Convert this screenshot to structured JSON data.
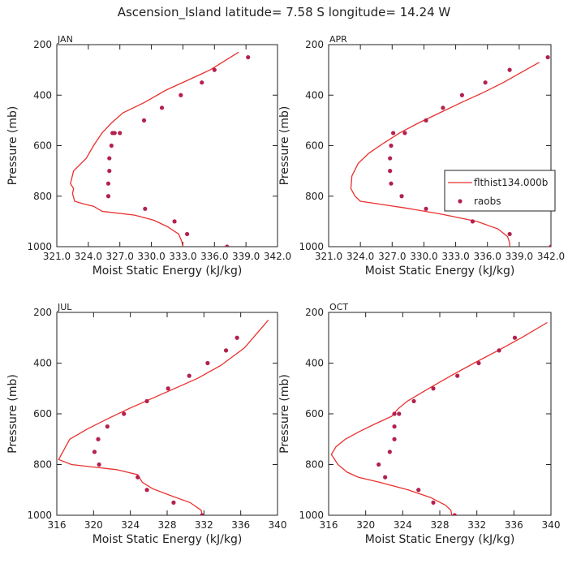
{
  "figure": {
    "title": "Ascension_Island  latitude= 7.58 S longitude= 14.24 W"
  },
  "legend": {
    "model_label": "flthist134.000b",
    "obs_label": "raobs"
  },
  "colors": {
    "model": "#e8312e",
    "obs": "#b3214f",
    "axis": "#222222"
  },
  "chart_data": [
    {
      "type": "line",
      "panel": "JAN",
      "xlabel": "Moist Static Energy (kJ/kg)",
      "ylabel": "Pressure (mb)",
      "xlim": [
        321.0,
        342.0
      ],
      "xticks": [
        321.0,
        324.0,
        327.0,
        330.0,
        333.0,
        336.0,
        339.0,
        342.0
      ],
      "xtick_labels": [
        "321.0",
        "324.0",
        "327.0",
        "330.0",
        "333.0",
        "336.0",
        "339.0",
        "342.0"
      ],
      "ylim": [
        1000,
        200
      ],
      "yticks": [
        200,
        400,
        600,
        800,
        1000
      ],
      "legend": false,
      "series": [
        {
          "name": "flthist134.000b",
          "kind": "line",
          "x": [
            333.0,
            332.9,
            332.6,
            331.5,
            330.2,
            328.4,
            325.3,
            324.5,
            323.5,
            322.7,
            322.5,
            322.6,
            322.3,
            322.6,
            323.8,
            324.5,
            325.3,
            326.2,
            327.3,
            329.3,
            331.4,
            333.5,
            335.6,
            338.3
          ],
          "y": [
            1000,
            980,
            950,
            920,
            895,
            875,
            860,
            840,
            830,
            820,
            790,
            770,
            750,
            700,
            650,
            600,
            550,
            510,
            470,
            430,
            380,
            340,
            300,
            230
          ]
        },
        {
          "name": "raobs",
          "kind": "scatter",
          "x": [
            337.2,
            333.4,
            332.2,
            329.4,
            325.9,
            325.9,
            326.0,
            326.0,
            326.2,
            326.3,
            326.5,
            327.0,
            329.3,
            331.0,
            332.8,
            334.8,
            336.0,
            339.2
          ],
          "y": [
            1000,
            950,
            900,
            850,
            800,
            750,
            700,
            650,
            600,
            550,
            550,
            550,
            500,
            450,
            400,
            350,
            300,
            250
          ]
        }
      ]
    },
    {
      "type": "line",
      "panel": "APR",
      "xlabel": "Moist Static Energy (kJ/kg)",
      "ylabel": "Pressure (mb)",
      "xlim": [
        321.0,
        342.0
      ],
      "xticks": [
        321.0,
        324.0,
        327.0,
        330.0,
        333.0,
        336.0,
        339.0,
        342.0
      ],
      "xtick_labels": [
        "321.0",
        "324.0",
        "327.0",
        "330.0",
        "333.0",
        "336.0",
        "339.0",
        "342.0"
      ],
      "ylim": [
        1000,
        200
      ],
      "yticks": [
        200,
        400,
        600,
        800,
        1000
      ],
      "legend": true,
      "legend_position": "right",
      "series": [
        {
          "name": "flthist134.000b",
          "kind": "line",
          "x": [
            338.1,
            338.1,
            337.9,
            337.0,
            335.0,
            331.5,
            328.0,
            325.6,
            324.0,
            323.5,
            323.1,
            323.2,
            323.8,
            324.8,
            326.2,
            327.7,
            329.5,
            331.5,
            333.5,
            335.6,
            337.5,
            339.2,
            340.9
          ],
          "y": [
            1000,
            985,
            960,
            930,
            900,
            870,
            845,
            830,
            820,
            800,
            770,
            720,
            670,
            630,
            590,
            550,
            510,
            470,
            430,
            390,
            350,
            310,
            270
          ]
        },
        {
          "name": "raobs",
          "kind": "scatter",
          "x": [
            342.0,
            338.1,
            334.6,
            330.2,
            327.9,
            326.9,
            326.8,
            326.8,
            326.9,
            327.1,
            328.2,
            330.2,
            331.8,
            333.6,
            335.8,
            338.1,
            341.7
          ],
          "y": [
            1000,
            950,
            900,
            850,
            800,
            750,
            700,
            650,
            600,
            550,
            550,
            500,
            450,
            400,
            350,
            300,
            250
          ]
        }
      ]
    },
    {
      "type": "line",
      "panel": "JUL",
      "xlabel": "Moist Static Energy (kJ/kg)",
      "ylabel": "Pressure (mb)",
      "xlim": [
        316,
        340
      ],
      "xticks": [
        316,
        320,
        324,
        328,
        332,
        336,
        340
      ],
      "xtick_labels": [
        "316",
        "320",
        "324",
        "328",
        "332",
        "336",
        "340"
      ],
      "ylim": [
        1000,
        200
      ],
      "yticks": [
        200,
        400,
        600,
        800,
        1000
      ],
      "legend": false,
      "series": [
        {
          "name": "flthist134.000b",
          "kind": "line",
          "x": [
            331.8,
            331.7,
            330.5,
            328.2,
            326.4,
            325.3,
            324.8,
            322.5,
            320.0,
            317.6,
            316.2,
            316.8,
            317.4,
            319.3,
            321.5,
            323.8,
            326.3,
            328.8,
            331.3,
            333.8,
            336.4,
            339.0
          ],
          "y": [
            1000,
            980,
            950,
            920,
            895,
            870,
            840,
            820,
            810,
            800,
            780,
            740,
            700,
            660,
            620,
            580,
            540,
            500,
            460,
            410,
            340,
            230
          ]
        },
        {
          "name": "raobs",
          "kind": "scatter",
          "x": [
            331.8,
            328.7,
            325.8,
            324.8,
            320.6,
            320.1,
            320.5,
            321.5,
            323.3,
            325.8,
            328.1,
            330.4,
            332.4,
            334.4,
            335.6
          ],
          "y": [
            1000,
            950,
            900,
            850,
            800,
            750,
            700,
            650,
            600,
            550,
            500,
            450,
            400,
            350,
            300
          ]
        }
      ]
    },
    {
      "type": "line",
      "panel": "OCT",
      "xlabel": "Moist Static Energy (kJ/kg)",
      "ylabel": "Pressure (mb)",
      "xlim": [
        316,
        340
      ],
      "xticks": [
        316,
        320,
        324,
        328,
        332,
        336,
        340
      ],
      "xtick_labels": [
        "316",
        "320",
        "324",
        "328",
        "332",
        "336",
        "340"
      ],
      "ylim": [
        1000,
        200
      ],
      "yticks": [
        200,
        400,
        600,
        800,
        1000
      ],
      "legend": false,
      "series": [
        {
          "name": "flthist134.000b",
          "kind": "line",
          "x": [
            329.3,
            329.2,
            328.6,
            327.0,
            324.6,
            321.5,
            319.2,
            318.0,
            317.0,
            316.3,
            316.8,
            317.8,
            319.3,
            321.0,
            322.8,
            323.5,
            324.5,
            326.8,
            329.2,
            331.7,
            334.3,
            336.8,
            339.6
          ],
          "y": [
            1000,
            980,
            960,
            930,
            900,
            870,
            850,
            830,
            800,
            760,
            730,
            700,
            670,
            640,
            610,
            580,
            550,
            500,
            450,
            400,
            350,
            300,
            240
          ]
        },
        {
          "name": "raobs",
          "kind": "scatter",
          "x": [
            329.6,
            327.3,
            325.7,
            322.1,
            321.4,
            322.6,
            323.1,
            323.1,
            323.1,
            323.6,
            325.2,
            327.3,
            329.9,
            332.2,
            334.4,
            336.1
          ],
          "y": [
            1000,
            950,
            900,
            850,
            800,
            750,
            700,
            650,
            600,
            600,
            550,
            500,
            450,
            400,
            350,
            300
          ]
        }
      ]
    }
  ]
}
